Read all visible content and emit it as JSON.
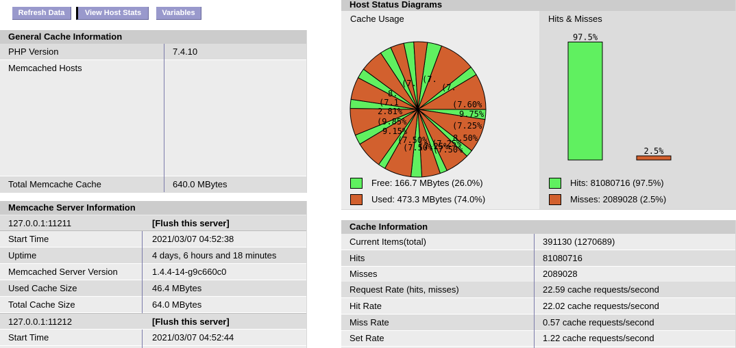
{
  "toolbar": {
    "refresh_label": "Refresh Data",
    "view_host_stats_label": "View Host Stats",
    "variables_label": "Variables"
  },
  "general": {
    "title": "General Cache Information",
    "php_version_label": "PHP Version",
    "php_version_value": "7.4.10",
    "hosts_label": "Memcached Hosts",
    "total_label": "Total Memcache Cache",
    "total_value": "640.0 MBytes"
  },
  "servers": {
    "title": "Memcache Server Information",
    "server1": {
      "host": "127.0.0.1:11211",
      "flush_label": "[Flush this server]",
      "start_time_label": "Start Time",
      "start_time_value": "2021/03/07 04:52:38",
      "uptime_label": "Uptime",
      "uptime_value": "4 days, 6 hours and 18 minutes",
      "version_label": "Memcached Server Version",
      "version_value": "1.4.4-14-g9c660c0",
      "used_label": "Used Cache Size",
      "used_value": "46.4 MBytes",
      "total_label": "Total Cache Size",
      "total_value": "64.0 MBytes"
    },
    "server2": {
      "host": "127.0.0.1:11212",
      "flush_label": "[Flush this server]",
      "start_time_label": "Start Time",
      "start_time_value": "2021/03/07 04:52:44"
    }
  },
  "diagrams": {
    "title": "Host Status Diagrams",
    "cache_usage_label": "Cache Usage",
    "hits_misses_label": "Hits & Misses",
    "free_legend": "Free: 166.7 MBytes (26.0%)",
    "used_legend": "Used: 473.3 MBytes (74.0%)",
    "hits_legend": "Hits: 81080716 (97.5%)",
    "misses_legend": "Misses: 2089028 (2.5%)",
    "colors": {
      "free": "#60f060",
      "used": "#d2602e"
    }
  },
  "chart_data": [
    {
      "type": "pie",
      "title": "Cache Usage",
      "slice_labels": [
        "(7.",
        "(7.",
        "(7.",
        "(7.60%",
        "9.75%",
        "(7.25%",
        "8.50%",
        "(7.50%",
        "(7.25%",
        "(7.25%",
        "(7.50%",
        "(7.50%",
        "9.15%",
        "(9.85%",
        "2.81%",
        "(7.1",
        "8."
      ],
      "slices": [
        {
          "value": 3.2,
          "kind": "free"
        },
        {
          "value": 8.0,
          "kind": "used"
        },
        {
          "value": 2.0,
          "kind": "free"
        },
        {
          "value": 8.0,
          "kind": "used"
        },
        {
          "value": 2.2,
          "kind": "free"
        },
        {
          "value": 7.5,
          "kind": "used"
        },
        {
          "value": 1.6,
          "kind": "free"
        },
        {
          "value": 5.4,
          "kind": "used"
        },
        {
          "value": 1.6,
          "kind": "free"
        },
        {
          "value": 4.1,
          "kind": "used"
        },
        {
          "value": 2.4,
          "kind": "free"
        },
        {
          "value": 6.0,
          "kind": "used"
        },
        {
          "value": 1.6,
          "kind": "free"
        },
        {
          "value": 6.1,
          "kind": "used"
        },
        {
          "value": 2.2,
          "kind": "free"
        },
        {
          "value": 6.0,
          "kind": "used"
        },
        {
          "value": 2.0,
          "kind": "free"
        },
        {
          "value": 5.0,
          "kind": "used"
        },
        {
          "value": 2.2,
          "kind": "free"
        },
        {
          "value": 5.2,
          "kind": "used"
        },
        {
          "value": 2.5,
          "kind": "free"
        },
        {
          "value": 3.0,
          "kind": "used"
        },
        {
          "value": 2.2,
          "kind": "free"
        },
        {
          "value": 3.0,
          "kind": "used"
        }
      ]
    },
    {
      "type": "bar",
      "title": "Hits & Misses",
      "categories": [
        "Hits",
        "Misses"
      ],
      "values": [
        97.5,
        2.5
      ],
      "value_labels": [
        "97.5%",
        "2.5%"
      ]
    }
  ],
  "cache_info": {
    "title": "Cache Information",
    "rows": [
      {
        "label": "Current Items(total)",
        "value": "391130 (1270689)"
      },
      {
        "label": "Hits",
        "value": "81080716"
      },
      {
        "label": "Misses",
        "value": "2089028"
      },
      {
        "label": "Request Rate (hits, misses)",
        "value": "22.59 cache requests/second"
      },
      {
        "label": "Hit Rate",
        "value": "22.02 cache requests/second"
      },
      {
        "label": "Miss Rate",
        "value": "0.57 cache requests/second"
      },
      {
        "label": "Set Rate",
        "value": "1.22 cache requests/second"
      }
    ]
  }
}
